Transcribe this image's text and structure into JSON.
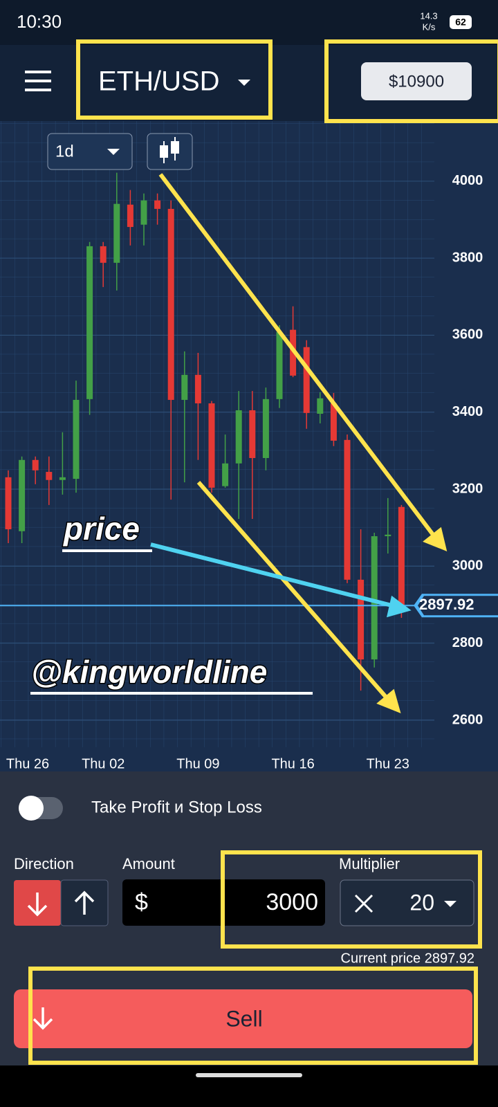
{
  "status_bar": {
    "time": "10:30",
    "speed": "14.3",
    "speed_unit": "K/s",
    "battery": "62"
  },
  "header": {
    "symbol": "ETH/USD",
    "balance": "$10900"
  },
  "chart_data": {
    "type": "candlestick",
    "timeframe": "1d",
    "categories": [
      "Thu 26",
      null,
      null,
      null,
      null,
      null,
      null,
      "Thu 02",
      null,
      null,
      null,
      null,
      null,
      null,
      "Thu 09",
      null,
      null,
      null,
      null,
      null,
      null,
      "Thu 16",
      null,
      null,
      null,
      null,
      null,
      null,
      "Thu 23",
      null
    ],
    "open": [
      3231,
      3091,
      3276,
      3245,
      3224,
      3227,
      3434,
      3831,
      3788,
      3939,
      3887,
      3950,
      3928,
      3432,
      3497,
      3423,
      3208,
      3267,
      3405,
      3281,
      3434,
      3614,
      3569,
      3396,
      3423,
      3328,
      2965,
      2758,
      3078,
      3154
    ],
    "high": [
      3249,
      3285,
      3285,
      3285,
      3348,
      3482,
      3842,
      3842,
      4022,
      3977,
      3968,
      3968,
      3950,
      3558,
      3554,
      3429,
      3342,
      3455,
      3455,
      3464,
      3626,
      3675,
      3587,
      3452,
      3450,
      3342,
      3096,
      3087,
      3177,
      3159
    ],
    "low": [
      3060,
      3060,
      3213,
      3159,
      3186,
      3191,
      3393,
      3725,
      3716,
      3833,
      3833,
      3887,
      3173,
      3218,
      3276,
      3191,
      3204,
      3123,
      3123,
      3249,
      3411,
      3491,
      3357,
      3371,
      3312,
      2956,
      2677,
      2737,
      3033,
      2866
    ],
    "close": [
      3096,
      3276,
      3249,
      3224,
      3231,
      3432,
      3831,
      3788,
      3941,
      3881,
      3950,
      3928,
      3432,
      3497,
      3423,
      3204,
      3267,
      3405,
      3281,
      3434,
      3608,
      3495,
      3398,
      3436,
      3326,
      2965,
      2758,
      3078,
      3082,
      2897.92
    ],
    "ylim": [
      2530,
      4156
    ],
    "yticks": [
      2600,
      2800,
      3000,
      3200,
      3400,
      3600,
      3800,
      4000
    ],
    "current_price": 2897.92,
    "up_color": "#43a047",
    "down_color": "#e53935",
    "price_line_color": "#4fb3f6",
    "annotations": [
      "price",
      "@kingworldline"
    ]
  },
  "order_form": {
    "toggle_label": "Take Profit и Stop Loss",
    "direction_label": "Direction",
    "amount_label": "Amount",
    "multiplier_label": "Multiplier",
    "currency": "$",
    "amount": "3000",
    "multiplier": "20",
    "current_price_text": "Current price 2897.92",
    "sell": "Sell"
  }
}
